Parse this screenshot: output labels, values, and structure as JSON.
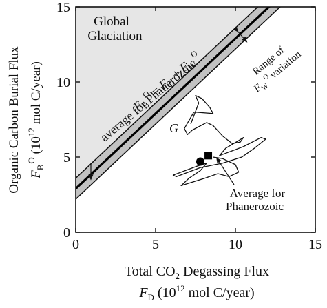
{
  "chart_data": {
    "type": "line",
    "xlim": [
      0,
      15
    ],
    "ylim": [
      0,
      15
    ],
    "xticks": [
      0,
      5,
      10,
      15
    ],
    "yticks": [
      0,
      5,
      10,
      15
    ],
    "xticklabels": [
      "0",
      "5",
      "10",
      "15"
    ],
    "yticklabels": [
      "0",
      "5",
      "10",
      "15"
    ],
    "xlabel_line1_pre": "Total CO",
    "xlabel_line1_sub": "2",
    "xlabel_line1_post": " Degassing Flux",
    "xlabel_line2_sym": "F",
    "xlabel_line2_symsub": "D",
    "xlabel_line2_pre": " (10",
    "xlabel_line2_sup": "12",
    "xlabel_line2_post": " mol C/year)",
    "ylabel_line1": "Organic Carbon Burial Flux",
    "ylabel_line2_sym": "F",
    "ylabel_line2_symsub": "B",
    "ylabel_line2_symsup": "O",
    "ylabel_line2_pre": " (10",
    "ylabel_line2_sup": "12",
    "ylabel_line2_post": " mol C/year)",
    "region_label_line1": "Global",
    "region_label_line2": "Glaciation",
    "equation": {
      "sym1": "F",
      "sub1": "B",
      "sup1": "O",
      "eq": " = ",
      "sym2": "F",
      "sub2": "D",
      "plus": " + ",
      "sym3": "F",
      "sub3": "W",
      "sup3": "O"
    },
    "line_label": "average for Phanerozoic",
    "range_label_line1": "Range of",
    "range_label_sym": "F",
    "range_label_sub": "W",
    "range_label_sup": "O",
    "range_label_post": "variation",
    "g_label": "G",
    "average_label_line1": "Average for",
    "average_label_line2": "Phanerozoic",
    "series": [
      {
        "role": "average-line",
        "x": [
          0,
          15
        ],
        "y": [
          2.9,
          17.9
        ]
      },
      {
        "role": "range-band",
        "x": [
          0,
          15
        ],
        "y_lower": [
          2.2,
          17.2
        ],
        "y_upper": [
          3.6,
          18.6
        ]
      },
      {
        "role": "trajectory",
        "x": [
          7.2,
          7.7,
          7.5,
          7.9,
          8.4,
          8.6,
          7.4,
          6.8,
          7.0,
          7.3,
          8.2,
          8.6,
          9.2,
          9.8,
          10.3,
          10.5,
          10.2,
          9.4,
          9.0,
          10.5,
          11.6,
          11.9,
          11.2,
          10.4,
          9.2,
          7.8,
          6.3,
          6.1,
          7.6,
          8.2,
          7.8,
          7.1,
          6.6,
          8.1,
          8.9,
          9.6,
          10.2,
          10.0,
          9.2,
          8.6
        ],
        "y": [
          7.2,
          8.6,
          9.1,
          8.9,
          8.3,
          7.9,
          8.0,
          6.9,
          6.5,
          6.8,
          7.3,
          7.1,
          6.4,
          5.9,
          6.0,
          6.3,
          6.1,
          5.6,
          5.1,
          5.7,
          6.3,
          6.2,
          5.6,
          5.0,
          4.6,
          4.3,
          3.7,
          3.8,
          4.4,
          4.6,
          4.1,
          3.6,
          3.1,
          3.6,
          3.9,
          3.7,
          4.0,
          4.5,
          4.9,
          5.0
        ]
      },
      {
        "role": "average-marker-circle",
        "x": [
          7.8
        ],
        "y": [
          4.7
        ]
      },
      {
        "role": "average-marker-square",
        "x": [
          8.3
        ],
        "y": [
          5.1
        ]
      }
    ]
  }
}
